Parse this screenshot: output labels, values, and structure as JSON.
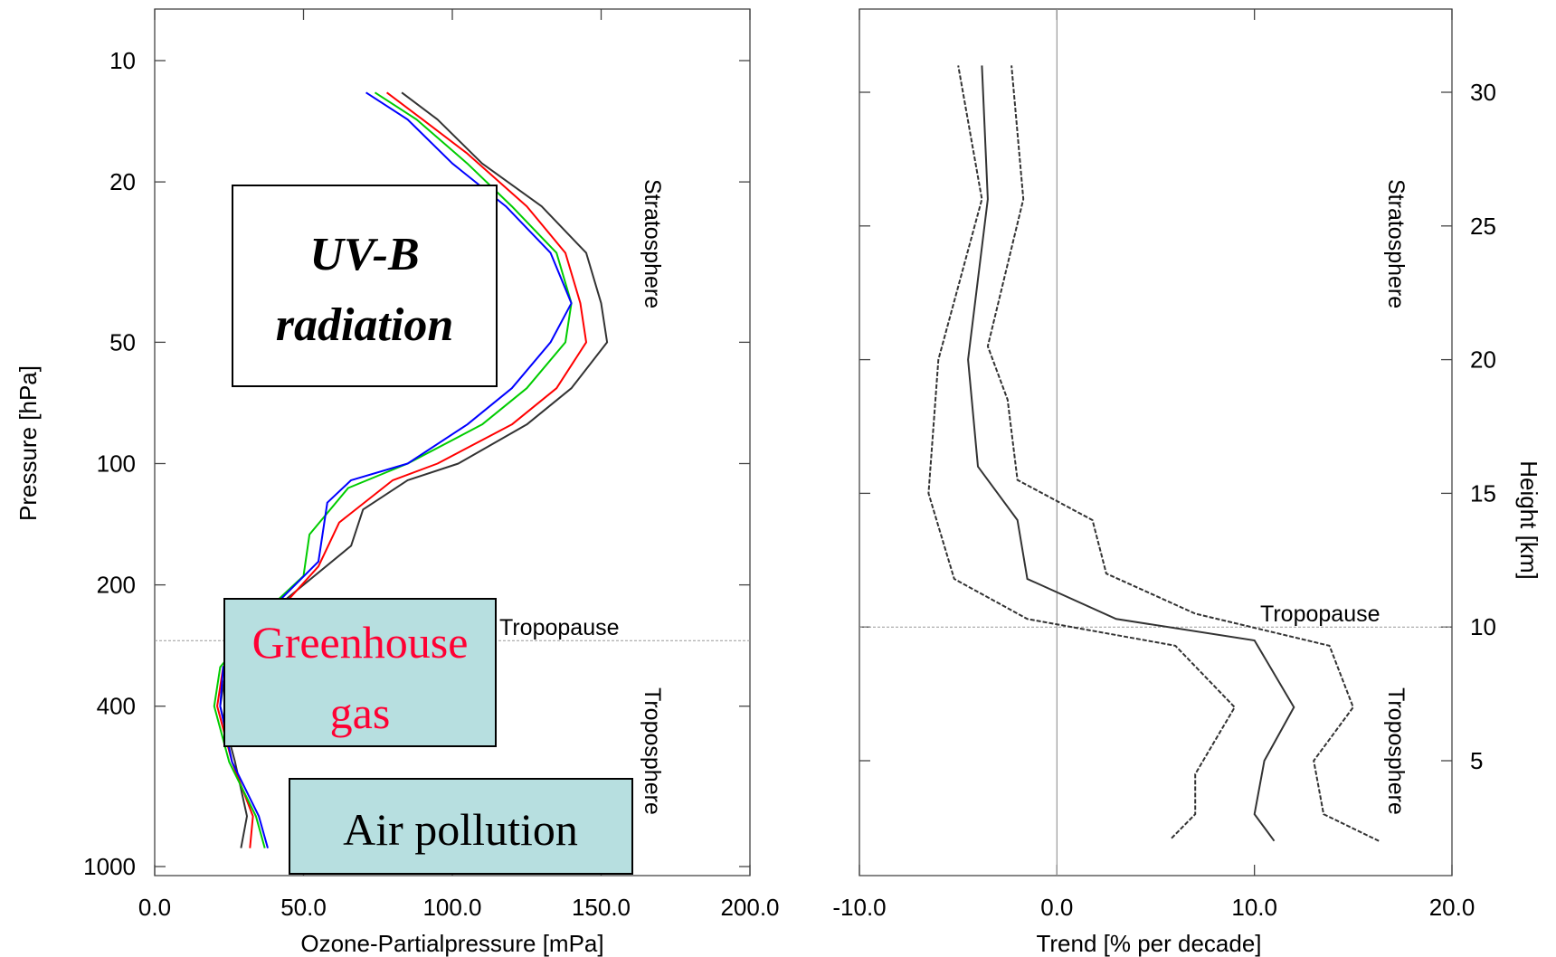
{
  "chart_data": [
    {
      "type": "line",
      "xlabel": "Ozone-Partialpressure [mPa]",
      "ylabel": "Pressure [hPa]",
      "xlim": [
        0,
        200
      ],
      "ylim": [
        1000,
        10
      ],
      "yscale": "log",
      "x_ticks": [
        "0.0",
        "50.0",
        "100.0",
        "150.0",
        "200.0"
      ],
      "y_ticks": [
        "10",
        "20",
        "50",
        "100",
        "200",
        "400",
        "1000"
      ],
      "grid": false,
      "annotations": [
        "Stratosphere",
        "Troposphere",
        "Tropopause"
      ],
      "tropopause_pressure_hPa": 275,
      "boxes": {
        "uvb": [
          "UV-B",
          "radiation"
        ],
        "greenhouse": [
          "Greenhouse",
          "gas"
        ],
        "air_pollution": "Air pollution"
      },
      "series": [
        {
          "color": "#333333",
          "points": [
            [
              29,
              900
            ],
            [
              31,
              750
            ],
            [
              27,
              550
            ],
            [
              22,
              400
            ],
            [
              24,
              320
            ],
            [
              40,
              230
            ],
            [
              50,
              200
            ],
            [
              66,
              160
            ],
            [
              70,
              130
            ],
            [
              85,
              110
            ],
            [
              102,
              100
            ],
            [
              125,
              80
            ],
            [
              140,
              65
            ],
            [
              152,
              50
            ],
            [
              150,
              40
            ],
            [
              145,
              30
            ],
            [
              130,
              23
            ],
            [
              110,
              18
            ],
            [
              95,
              14
            ],
            [
              83,
              12
            ]
          ]
        },
        {
          "color": "#ff0000",
          "points": [
            [
              32,
              900
            ],
            [
              33,
              750
            ],
            [
              26,
              550
            ],
            [
              21,
              400
            ],
            [
              23,
              320
            ],
            [
              42,
              230
            ],
            [
              55,
              180
            ],
            [
              62,
              140
            ],
            [
              80,
              110
            ],
            [
              95,
              100
            ],
            [
              120,
              80
            ],
            [
              135,
              65
            ],
            [
              145,
              50
            ],
            [
              143,
              40
            ],
            [
              138,
              30
            ],
            [
              125,
              23
            ],
            [
              105,
              17
            ],
            [
              90,
              14
            ],
            [
              78,
              12
            ]
          ]
        },
        {
          "color": "#00cc00",
          "points": [
            [
              37,
              900
            ],
            [
              34,
              750
            ],
            [
              25,
              550
            ],
            [
              20,
              400
            ],
            [
              22,
              320
            ],
            [
              38,
              230
            ],
            [
              50,
              190
            ],
            [
              52,
              150
            ],
            [
              65,
              115
            ],
            [
              85,
              100
            ],
            [
              110,
              80
            ],
            [
              125,
              65
            ],
            [
              138,
              50
            ],
            [
              140,
              40
            ],
            [
              135,
              30
            ],
            [
              120,
              23
            ],
            [
              105,
              18
            ],
            [
              88,
              14
            ],
            [
              74,
              12
            ]
          ]
        },
        {
          "color": "#0000ff",
          "points": [
            [
              38,
              900
            ],
            [
              35,
              750
            ],
            [
              26,
              550
            ],
            [
              22,
              400
            ],
            [
              23,
              320
            ],
            [
              39,
              230
            ],
            [
              55,
              175
            ],
            [
              58,
              125
            ],
            [
              66,
              110
            ],
            [
              85,
              100
            ],
            [
              105,
              80
            ],
            [
              120,
              65
            ],
            [
              133,
              50
            ],
            [
              140,
              40
            ],
            [
              133,
              30
            ],
            [
              118,
              23
            ],
            [
              100,
              18
            ],
            [
              85,
              14
            ],
            [
              71,
              12
            ]
          ]
        }
      ]
    },
    {
      "type": "line",
      "xlabel": "Trend  [% per decade]",
      "ylabel": "Height [km]",
      "xlim": [
        -10,
        20
      ],
      "ylim": [
        1,
        32
      ],
      "x_ticks": [
        "-10.0",
        "0.0",
        "10.0",
        "20.0"
      ],
      "y_ticks": [
        "5",
        "10",
        "15",
        "20",
        "25",
        "30"
      ],
      "grid": false,
      "annotations": [
        "Stratosphere",
        "Troposphere",
        "Tropopause"
      ],
      "tropopause_height_km": 10,
      "series": [
        {
          "style": "solid",
          "points": [
            [
              11,
              2
            ],
            [
              10.5,
              2.5
            ],
            [
              10,
              3
            ],
            [
              10.5,
              5
            ],
            [
              12,
              7
            ],
            [
              10,
              9.5
            ],
            [
              3,
              10.3
            ],
            [
              -1.5,
              11.8
            ],
            [
              -2,
              14
            ],
            [
              -4,
              16
            ],
            [
              -4.5,
              20
            ],
            [
              -3.5,
              26
            ],
            [
              -3.8,
              31
            ]
          ]
        },
        {
          "style": "dashed",
          "points": [
            [
              5.8,
              2.1
            ],
            [
              7,
              3
            ],
            [
              7,
              4.5
            ],
            [
              9,
              7
            ],
            [
              6,
              9.3
            ],
            [
              -1.5,
              10.3
            ],
            [
              -5.2,
              11.8
            ],
            [
              -6.5,
              15
            ],
            [
              -6,
              20
            ],
            [
              -3.8,
              26
            ],
            [
              -5,
              31
            ]
          ]
        },
        {
          "style": "dashed",
          "points": [
            [
              16.3,
              2
            ],
            [
              13.5,
              3
            ],
            [
              13,
              5
            ],
            [
              15,
              7
            ],
            [
              13.8,
              9.3
            ],
            [
              7,
              10.5
            ],
            [
              2.5,
              12
            ],
            [
              1.8,
              14
            ],
            [
              -2,
              15.5
            ],
            [
              -2.5,
              18.5
            ],
            [
              -3.5,
              20.5
            ],
            [
              -1.7,
              26
            ],
            [
              -2.3,
              31
            ]
          ]
        }
      ]
    }
  ]
}
